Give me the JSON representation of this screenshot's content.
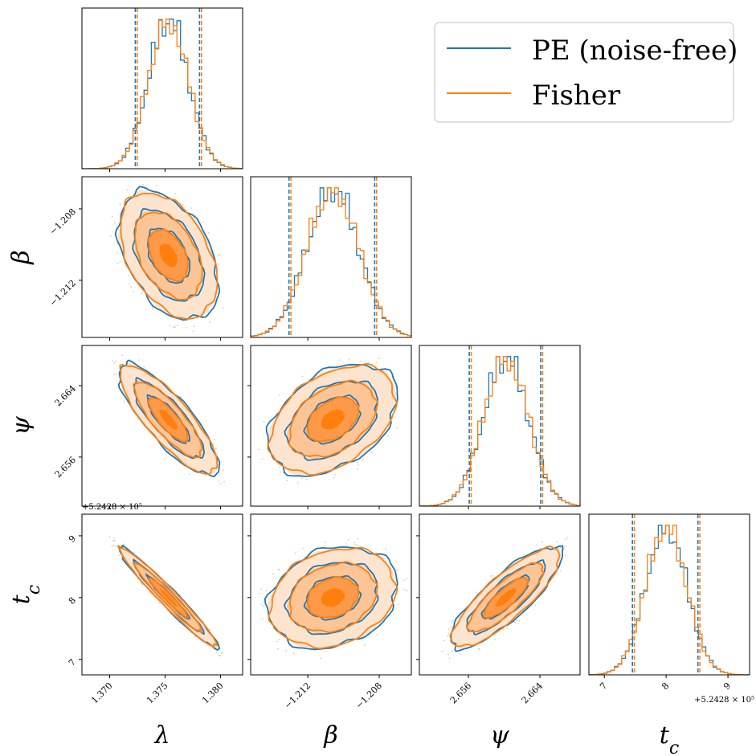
{
  "chart_data": {
    "type": "corner",
    "parameters": [
      {
        "key": "lambda",
        "label": "λ",
        "sub": "",
        "range": [
          1.3675,
          1.382
        ],
        "ticks": [
          1.37,
          1.375,
          1.38
        ],
        "tick_labels": [
          "1.370",
          "1.375",
          "1.380"
        ],
        "offset_label": "",
        "mean": 1.3753,
        "sigma": 0.0018,
        "q_low": 1.3724,
        "q_high": 1.3782
      },
      {
        "key": "beta",
        "label": "β",
        "sub": "",
        "range": [
          -1.2152,
          -1.2062
        ],
        "ticks": [
          -1.212,
          -1.208
        ],
        "tick_labels": [
          "−1.212",
          "−1.208"
        ],
        "offset_label": "",
        "mean": -1.2106,
        "sigma": 0.00145,
        "q_low": -1.213,
        "q_high": -1.2082
      },
      {
        "key": "psi",
        "label": "ψ",
        "sub": "",
        "range": [
          2.6505,
          2.6685
        ],
        "ticks": [
          2.656,
          2.664
        ],
        "tick_labels": [
          "2.656",
          "2.664"
        ],
        "offset_label": "",
        "mean": 2.6602,
        "sigma": 0.0025,
        "q_low": 2.6562,
        "q_high": 2.6642
      },
      {
        "key": "tc",
        "label": "t",
        "sub": "c",
        "range": [
          6.75,
          9.35
        ],
        "ticks": [
          7,
          8,
          9
        ],
        "tick_labels": [
          "7",
          "8",
          "9"
        ],
        "offset_label": "+5.2428 × 10⁵",
        "mean": 8.0,
        "sigma": 0.33,
        "q_low": 7.47,
        "q_high": 8.53
      }
    ],
    "correlations": {
      "lambda_beta": -0.42,
      "lambda_psi": -0.82,
      "lambda_tc": -0.97,
      "beta_psi": 0.4,
      "beta_tc": 0.22,
      "psi_tc": 0.83
    },
    "series": [
      {
        "name": "PE (noise-free)",
        "color": "#1f77b4"
      },
      {
        "name": "Fisher",
        "color": "#ff7f0e"
      }
    ],
    "legend": "top-right"
  }
}
